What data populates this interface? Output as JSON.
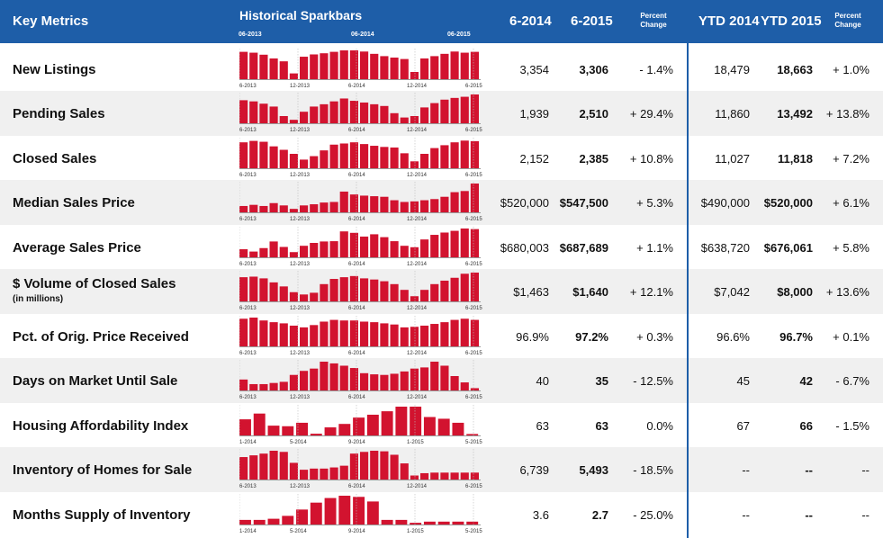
{
  "header": {
    "key_metrics": "Key Metrics",
    "sparkbars_title": "Historical Sparkbars",
    "spark_ticks": [
      "06-2013",
      "06-2014",
      "06-2015"
    ],
    "col_2014": "6-2014",
    "col_2015": "6-2015",
    "pct_change_a": "Percent",
    "pct_change_b": "Change",
    "col_ytd2014": "YTD 2014",
    "col_ytd2015": "YTD 2015",
    "ytd_pct_a": "Percent",
    "ytd_pct_b": "Change"
  },
  "colors": {
    "header_bg": "#1e5ea8",
    "bar": "#d2132f",
    "accent": "#1e5ea8"
  },
  "rows": [
    {
      "label": "New Listings",
      "sub": "",
      "v2014": "3,354",
      "v2015": "3,306",
      "pct": "- 1.4%",
      "ytd2014": "18,479",
      "ytd2015": "18,663",
      "ytdpct": "+ 1.0%",
      "ticks": [
        "6-2013",
        "12-2013",
        "6-2014",
        "12-2014",
        "6-2015"
      ],
      "bars": [
        0.95,
        0.92,
        0.85,
        0.72,
        0.62,
        0.2,
        0.78,
        0.86,
        0.9,
        0.95,
        1.0,
        1.0,
        0.96,
        0.88,
        0.8,
        0.75,
        0.7,
        0.25,
        0.72,
        0.8,
        0.88,
        0.96,
        0.92,
        0.95
      ]
    },
    {
      "label": "Pending Sales",
      "sub": "",
      "v2014": "1,939",
      "v2015": "2,510",
      "pct": "+ 29.4%",
      "ytd2014": "11,860",
      "ytd2015": "13,492",
      "ytdpct": "+ 13.8%",
      "ticks": [
        "6-2013",
        "12-2013",
        "6-2014",
        "12-2014",
        "6-2015"
      ],
      "bars": [
        0.8,
        0.76,
        0.68,
        0.58,
        0.25,
        0.12,
        0.4,
        0.58,
        0.66,
        0.76,
        0.86,
        0.78,
        0.72,
        0.66,
        0.6,
        0.35,
        0.2,
        0.25,
        0.55,
        0.7,
        0.82,
        0.88,
        0.92,
        1.0
      ]
    },
    {
      "label": "Closed Sales",
      "sub": "",
      "v2014": "2,152",
      "v2015": "2,385",
      "pct": "+ 10.8%",
      "ytd2014": "11,027",
      "ytd2015": "11,818",
      "ytdpct": "+ 7.2%",
      "ticks": [
        "6-2013",
        "12-2013",
        "6-2014",
        "12-2014",
        "6-2015"
      ],
      "bars": [
        0.9,
        0.95,
        0.92,
        0.76,
        0.64,
        0.5,
        0.3,
        0.42,
        0.62,
        0.82,
        0.86,
        0.9,
        0.84,
        0.78,
        0.74,
        0.72,
        0.52,
        0.24,
        0.5,
        0.7,
        0.8,
        0.9,
        0.96,
        0.94
      ]
    },
    {
      "label": "Median Sales Price",
      "sub": "",
      "v2014": "$520,000",
      "v2015": "$547,500",
      "pct": "+ 5.3%",
      "ytd2014": "$490,000",
      "ytd2015": "$520,000",
      "ytdpct": "+ 6.1%",
      "ticks": [
        "6-2013",
        "12-2013",
        "6-2014",
        "12-2014",
        "6-2015"
      ],
      "bars": [
        0.22,
        0.26,
        0.22,
        0.32,
        0.24,
        0.12,
        0.24,
        0.28,
        0.34,
        0.36,
        0.72,
        0.62,
        0.58,
        0.56,
        0.54,
        0.42,
        0.36,
        0.38,
        0.42,
        0.46,
        0.54,
        0.7,
        0.74,
        1.0
      ]
    },
    {
      "label": "Average Sales Price",
      "sub": "",
      "v2014": "$680,003",
      "v2015": "$687,689",
      "pct": "+ 1.1%",
      "ytd2014": "$638,720",
      "ytd2015": "$676,061",
      "ytdpct": "+ 5.8%",
      "ticks": [
        "6-2013",
        "12-2013",
        "6-2014",
        "12-2014",
        "6-2015"
      ],
      "bars": [
        0.28,
        0.2,
        0.32,
        0.55,
        0.36,
        0.18,
        0.4,
        0.5,
        0.55,
        0.56,
        0.9,
        0.85,
        0.72,
        0.8,
        0.7,
        0.56,
        0.4,
        0.35,
        0.62,
        0.78,
        0.86,
        0.92,
        1.0,
        0.98
      ]
    },
    {
      "label": "$ Volume of Closed Sales",
      "sub": "(in millions)",
      "v2014": "$1,463",
      "v2015": "$1,640",
      "pct": "+ 12.1%",
      "ytd2014": "$7,042",
      "ytd2015": "$8,000",
      "ytdpct": "+ 13.6%",
      "ticks": [
        "6-2013",
        "12-2013",
        "6-2014",
        "12-2014",
        "6-2015"
      ],
      "bars": [
        0.84,
        0.86,
        0.8,
        0.66,
        0.52,
        0.32,
        0.24,
        0.3,
        0.6,
        0.78,
        0.84,
        0.88,
        0.8,
        0.76,
        0.7,
        0.6,
        0.4,
        0.18,
        0.4,
        0.6,
        0.72,
        0.82,
        0.96,
        1.0
      ]
    },
    {
      "label": "Pct. of Orig. Price Received",
      "sub": "",
      "v2014": "96.9%",
      "v2015": "97.2%",
      "pct": "+ 0.3%",
      "ytd2014": "96.6%",
      "ytd2015": "96.7%",
      "ytdpct": "+ 0.1%",
      "ticks": [
        "6-2013",
        "12-2013",
        "6-2014",
        "12-2014",
        "6-2015"
      ],
      "bars": [
        0.96,
        1.0,
        0.9,
        0.84,
        0.8,
        0.72,
        0.66,
        0.74,
        0.86,
        0.92,
        0.9,
        0.9,
        0.86,
        0.84,
        0.8,
        0.76,
        0.66,
        0.68,
        0.72,
        0.78,
        0.84,
        0.92,
        0.96,
        0.92
      ]
    },
    {
      "label": "Days on Market Until Sale",
      "sub": "",
      "v2014": "40",
      "v2015": "35",
      "pct": "- 12.5%",
      "ytd2014": "45",
      "ytd2015": "42",
      "ytdpct": "- 6.7%",
      "ticks": [
        "6-2013",
        "12-2013",
        "6-2014",
        "12-2014",
        "6-2015"
      ],
      "bars": [
        0.38,
        0.22,
        0.22,
        0.26,
        0.3,
        0.54,
        0.68,
        0.76,
        1.0,
        0.94,
        0.86,
        0.78,
        0.6,
        0.56,
        0.54,
        0.58,
        0.66,
        0.76,
        0.8,
        1.0,
        0.86,
        0.5,
        0.28,
        0.08
      ]
    },
    {
      "label": "Housing Affordability Index",
      "sub": "",
      "v2014": "63",
      "v2015": "63",
      "pct": "0.0%",
      "ytd2014": "67",
      "ytd2015": "66",
      "ytdpct": "- 1.5%",
      "ticks": [
        "1-2014",
        "5-2014",
        "9-2014",
        "1-2015",
        "5-2015"
      ],
      "bars": [
        0.56,
        0.76,
        0.34,
        0.32,
        0.44,
        0.06,
        0.28,
        0.4,
        0.62,
        0.72,
        0.84,
        1.0,
        1.0,
        0.64,
        0.58,
        0.44,
        0.05
      ]
    },
    {
      "label": "Inventory of Homes for Sale",
      "sub": "",
      "v2014": "6,739",
      "v2015": "5,493",
      "pct": "- 18.5%",
      "ytd2014": "--",
      "ytd2015": "--",
      "ytdpct": "--",
      "ticks": [
        "6-2013",
        "12-2013",
        "6-2014",
        "12-2014",
        "6-2015"
      ],
      "bars": [
        0.78,
        0.84,
        0.9,
        1.0,
        0.96,
        0.58,
        0.34,
        0.38,
        0.38,
        0.42,
        0.48,
        0.9,
        0.96,
        1.0,
        0.98,
        0.86,
        0.56,
        0.14,
        0.22,
        0.24,
        0.24,
        0.24,
        0.24,
        0.24
      ]
    },
    {
      "label": "Months Supply of Inventory",
      "sub": "",
      "v2014": "3.6",
      "v2015": "2.7",
      "pct": "- 25.0%",
      "ytd2014": "--",
      "ytd2015": "--",
      "ytdpct": "--",
      "ticks": [
        "1-2014",
        "5-2014",
        "9-2014",
        "1-2015",
        "5-2015"
      ],
      "bars": [
        0.16,
        0.16,
        0.2,
        0.3,
        0.52,
        0.76,
        0.92,
        1.0,
        0.96,
        0.8,
        0.16,
        0.16,
        0.06,
        0.1,
        0.1,
        0.1,
        0.1
      ]
    }
  ]
}
